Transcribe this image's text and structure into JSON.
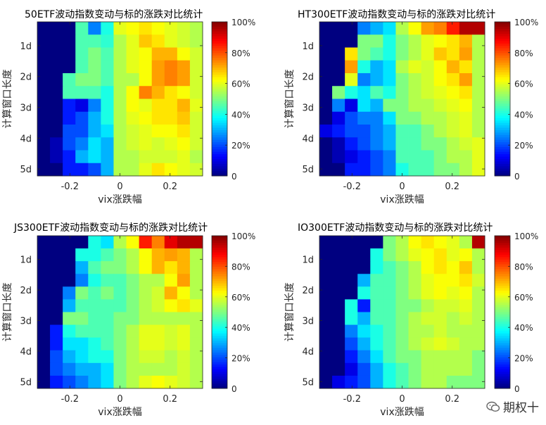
{
  "colormap": "jet",
  "chart_data": [
    {
      "type": "heatmap",
      "title": "50ETF波动指数变动与标的涨跌对比统计",
      "xlabel": "vix涨跌幅",
      "ylabel": "计算窗口长度",
      "x_range": [
        -0.33,
        0.33
      ],
      "x_ticks": [
        -0.2,
        0,
        0.2
      ],
      "x_tick_labels": [
        "-0.2",
        "0",
        "0.2"
      ],
      "y_tick_labels": [
        "1d",
        "2d",
        "3d",
        "4d",
        "5d"
      ],
      "colorbar_ticks": [
        "100%",
        "80%",
        "60%",
        "40%",
        "20%",
        "0"
      ],
      "z": [
        [
          0,
          0,
          0,
          0.45,
          0.25,
          0.4,
          0.6,
          0.62,
          0.65,
          0.62,
          0.6,
          0.58,
          0.55
        ],
        [
          0,
          0,
          0,
          0.45,
          0.45,
          0.42,
          0.55,
          0.6,
          0.68,
          0.65,
          0.6,
          0.58,
          0.55
        ],
        [
          0,
          0,
          0,
          0.45,
          0.5,
          0.45,
          0.55,
          0.6,
          0.62,
          0.7,
          0.7,
          0.62,
          0.58
        ],
        [
          0,
          0,
          0,
          0.45,
          0.5,
          0.45,
          0.55,
          0.6,
          0.62,
          0.72,
          0.75,
          0.72,
          0.58
        ],
        [
          0,
          0,
          0.45,
          0.5,
          0.5,
          0.45,
          0.55,
          0.55,
          0.62,
          0.72,
          0.75,
          0.72,
          0.58
        ],
        [
          0,
          0,
          0.45,
          0.45,
          0.45,
          0.4,
          0.55,
          0.62,
          0.75,
          0.7,
          0.65,
          0.62,
          0.58
        ],
        [
          0,
          0,
          0.15,
          0.1,
          0.25,
          0.4,
          0.55,
          0.62,
          0.6,
          0.65,
          0.65,
          0.7,
          0.6
        ],
        [
          0,
          0,
          0.15,
          0.2,
          0.3,
          0.4,
          0.55,
          0.6,
          0.62,
          0.65,
          0.65,
          0.68,
          0.58
        ],
        [
          0,
          0,
          0.2,
          0.2,
          0.3,
          0.35,
          0.55,
          0.58,
          0.6,
          0.62,
          0.62,
          0.65,
          0.58
        ],
        [
          0,
          0.05,
          0.2,
          0.25,
          0.35,
          0.3,
          0.55,
          0.58,
          0.6,
          0.58,
          0.6,
          0.62,
          0.58
        ],
        [
          0,
          0.05,
          0.15,
          0.3,
          0.35,
          0.3,
          0.55,
          0.55,
          0.58,
          0.58,
          0.58,
          0.6,
          0.55
        ],
        [
          0,
          0,
          0.15,
          0.15,
          0.2,
          0.3,
          0.55,
          0.55,
          0.6,
          0.65,
          0.62,
          0.6,
          0.58
        ]
      ]
    },
    {
      "type": "heatmap",
      "title": "HT300ETF波动指数变动与标的涨跌对比统计",
      "xlabel": "vix涨跌幅",
      "ylabel": "计算窗口长度",
      "x_range": [
        -0.33,
        0.33
      ],
      "x_ticks": [
        -0.2,
        0,
        0.2
      ],
      "x_tick_labels": [
        "-0.2",
        "0",
        "0.2"
      ],
      "y_tick_labels": [
        "1d",
        "2d",
        "3d",
        "4d",
        "5d"
      ],
      "colorbar_ticks": [
        "100%",
        "80%",
        "60%",
        "40%",
        "20%",
        "0"
      ],
      "z": [
        [
          0,
          0,
          0,
          0.25,
          0.3,
          0.35,
          0.55,
          0.62,
          0.72,
          0.75,
          0.85,
          0.95,
          0.95
        ],
        [
          0,
          0,
          0,
          0.5,
          0.5,
          0.4,
          0.5,
          0.55,
          0.6,
          0.62,
          0.65,
          0.7,
          0.55
        ],
        [
          0,
          0,
          0.65,
          0.5,
          0.45,
          0.4,
          0.5,
          0.55,
          0.6,
          0.68,
          0.65,
          0.72,
          0.55
        ],
        [
          0,
          0,
          0.72,
          0.4,
          0.3,
          0.35,
          0.55,
          0.6,
          0.58,
          0.62,
          0.7,
          0.65,
          0.55
        ],
        [
          0,
          0,
          0.6,
          0.25,
          0.3,
          0.35,
          0.5,
          0.55,
          0.58,
          0.62,
          0.65,
          0.72,
          0.55
        ],
        [
          0,
          0.5,
          0.4,
          0.35,
          0.45,
          0.4,
          0.5,
          0.55,
          0.58,
          0.6,
          0.62,
          0.65,
          0.55
        ],
        [
          0,
          0.25,
          0.1,
          0.35,
          0.3,
          0.5,
          0.5,
          0.55,
          0.55,
          0.58,
          0.6,
          0.62,
          0.55
        ],
        [
          0,
          0.1,
          0.2,
          0.25,
          0.25,
          0.35,
          0.5,
          0.5,
          0.55,
          0.55,
          0.58,
          0.6,
          0.55
        ],
        [
          0.1,
          0.15,
          0.2,
          0.2,
          0.25,
          0.3,
          0.45,
          0.45,
          0.5,
          0.55,
          0.58,
          0.6,
          0.55
        ],
        [
          0,
          0.05,
          0.15,
          0.2,
          0.25,
          0.3,
          0.45,
          0.45,
          0.5,
          0.5,
          0.55,
          0.58,
          0.6
        ],
        [
          0,
          0.05,
          0.1,
          0.15,
          0.2,
          0.25,
          0.45,
          0.45,
          0.45,
          0.5,
          0.55,
          0.55,
          0.6
        ],
        [
          0,
          0,
          0.15,
          0.15,
          0.2,
          0.25,
          0.4,
          0.45,
          0.45,
          0.5,
          0.5,
          0.55,
          0.6
        ]
      ]
    },
    {
      "type": "heatmap",
      "title": "JS300ETF波动指数变动与标的涨跌对比统计",
      "xlabel": "vix涨跌幅",
      "ylabel": "计算窗口长度",
      "x_range": [
        -0.33,
        0.33
      ],
      "x_ticks": [
        -0.2,
        0,
        0.2
      ],
      "x_tick_labels": [
        "-0.2",
        "0",
        "0.2"
      ],
      "y_tick_labels": [
        "1d",
        "2d",
        "3d",
        "4d",
        "5d"
      ],
      "colorbar_ticks": [
        "100%",
        "80%",
        "60%",
        "40%",
        "20%",
        "0"
      ],
      "z": [
        [
          0,
          0,
          0,
          0,
          0.4,
          0.35,
          0.55,
          0.62,
          0.85,
          0.75,
          0.9,
          0.95,
          0.95
        ],
        [
          0,
          0,
          0,
          0.4,
          0.4,
          0.45,
          0.5,
          0.55,
          0.62,
          0.7,
          0.72,
          0.7,
          0.55
        ],
        [
          0,
          0,
          0,
          0.3,
          0.45,
          0.5,
          0.5,
          0.55,
          0.62,
          0.7,
          0.65,
          0.7,
          0.55
        ],
        [
          0,
          0,
          0,
          0.25,
          0.4,
          0.45,
          0.45,
          0.5,
          0.55,
          0.55,
          0.62,
          0.72,
          0.55
        ],
        [
          0,
          0,
          0.25,
          0.5,
          0.45,
          0.5,
          0.45,
          0.5,
          0.55,
          0.58,
          0.7,
          0.62,
          0.55
        ],
        [
          0,
          0,
          0.3,
          0.45,
          0.45,
          0.45,
          0.45,
          0.5,
          0.55,
          0.58,
          0.62,
          0.65,
          0.6
        ],
        [
          0,
          0,
          0.5,
          0.5,
          0.45,
          0.45,
          0.5,
          0.5,
          0.55,
          0.55,
          0.55,
          0.55,
          0.55
        ],
        [
          0,
          0.15,
          0.4,
          0.45,
          0.45,
          0.45,
          0.5,
          0.55,
          0.6,
          0.6,
          0.58,
          0.6,
          0.55
        ],
        [
          0,
          0.15,
          0.35,
          0.35,
          0.4,
          0.45,
          0.5,
          0.55,
          0.6,
          0.6,
          0.58,
          0.6,
          0.55
        ],
        [
          0,
          0.2,
          0.3,
          0.35,
          0.4,
          0.4,
          0.5,
          0.55,
          0.58,
          0.58,
          0.55,
          0.58,
          0.55
        ],
        [
          0,
          0.2,
          0.25,
          0.3,
          0.3,
          0.35,
          0.5,
          0.55,
          0.55,
          0.55,
          0.55,
          0.58,
          0.55
        ],
        [
          0,
          0.15,
          0.2,
          0.25,
          0.3,
          0.35,
          0.5,
          0.55,
          0.6,
          0.62,
          0.6,
          0.58,
          0.55
        ]
      ]
    },
    {
      "type": "heatmap",
      "title": "IO300ETF波动指数变动与标的涨跌对比统计",
      "xlabel": "vix涨跌幅",
      "ylabel": "计算窗口长度",
      "x_range": [
        -0.33,
        0.33
      ],
      "x_ticks": [
        -0.2,
        0,
        0.2
      ],
      "x_tick_labels": [
        "-0.2",
        "0",
        "0.2"
      ],
      "y_tick_labels": [
        "1d",
        "2d",
        "3d",
        "4d",
        "5d"
      ],
      "colorbar_ticks": [
        "100%",
        "80%",
        "60%",
        "40%",
        "20%",
        "0"
      ],
      "z": [
        [
          0,
          0,
          0,
          0,
          0,
          0.5,
          0.55,
          0.62,
          0.65,
          0.62,
          0.6,
          0.55,
          0.95
        ],
        [
          0,
          0,
          0,
          0,
          0.4,
          0.5,
          0.55,
          0.6,
          0.62,
          0.65,
          0.6,
          0.62,
          0.55
        ],
        [
          0,
          0,
          0,
          0,
          0.4,
          0.45,
          0.5,
          0.55,
          0.62,
          0.65,
          0.62,
          0.68,
          0.55
        ],
        [
          0,
          0,
          0,
          0.3,
          0.45,
          0.45,
          0.5,
          0.55,
          0.6,
          0.62,
          0.62,
          0.65,
          0.58
        ],
        [
          0,
          0,
          0,
          0.4,
          0.45,
          0.45,
          0.5,
          0.55,
          0.6,
          0.62,
          0.6,
          0.62,
          0.55
        ],
        [
          0,
          0,
          0.4,
          0.15,
          0.45,
          0.45,
          0.5,
          0.5,
          0.55,
          0.58,
          0.58,
          0.6,
          0.55
        ],
        [
          0,
          0,
          0.4,
          0.3,
          0.45,
          0.45,
          0.5,
          0.55,
          0.58,
          0.58,
          0.55,
          0.58,
          0.55
        ],
        [
          0,
          0,
          0.25,
          0.35,
          0.4,
          0.45,
          0.5,
          0.55,
          0.55,
          0.58,
          0.55,
          0.55,
          0.55
        ],
        [
          0,
          0,
          0.2,
          0.3,
          0.4,
          0.45,
          0.5,
          0.55,
          0.58,
          0.6,
          0.58,
          0.55,
          0.55
        ],
        [
          0,
          0,
          0.15,
          0.25,
          0.35,
          0.45,
          0.5,
          0.5,
          0.55,
          0.55,
          0.55,
          0.55,
          0.5
        ],
        [
          0,
          0,
          0.1,
          0.2,
          0.3,
          0.4,
          0.45,
          0.5,
          0.55,
          0.55,
          0.55,
          0.55,
          0.5
        ],
        [
          0,
          0.1,
          0.15,
          0.2,
          0.3,
          0.4,
          0.45,
          0.5,
          0.55,
          0.55,
          0.5,
          0.5,
          0.5
        ]
      ]
    }
  ],
  "watermark": {
    "text": "期权十",
    "icon": "wechat-icon"
  }
}
